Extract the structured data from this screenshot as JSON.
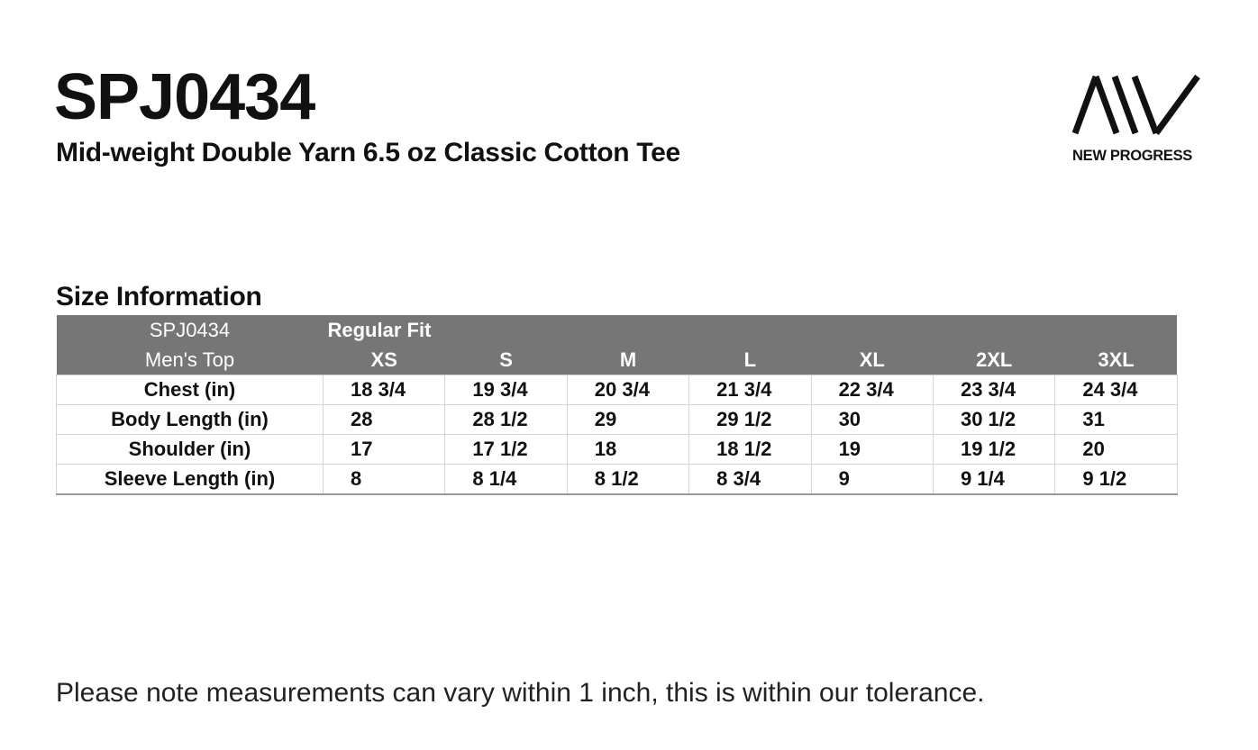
{
  "header": {
    "code": "SPJ0434",
    "subtitle": "Mid-weight Double Yarn 6.5 oz Classic Cotton Tee",
    "brand": "NEW PROGRESS",
    "logo_icon": "aw-stripes-logo"
  },
  "section_title": "Size Information",
  "table": {
    "header_code": "SPJ0434",
    "header_fit": "Regular Fit",
    "header_category": "Men's Top",
    "sizes": [
      "XS",
      "S",
      "M",
      "L",
      "XL",
      "2XL",
      "3XL"
    ],
    "rows": [
      {
        "label": "Chest (in)",
        "values": [
          "18 3/4",
          "19 3/4",
          "20 3/4",
          "21 3/4",
          "22 3/4",
          "23 3/4",
          "24 3/4"
        ]
      },
      {
        "label": "Body Length (in)",
        "values": [
          "28",
          "28 1/2",
          "29",
          "29 1/2",
          "30",
          "30 1/2",
          "31"
        ]
      },
      {
        "label": "Shoulder (in)",
        "values": [
          "17",
          "17 1/2",
          "18",
          "18 1/2",
          "19",
          "19 1/2",
          "20"
        ]
      },
      {
        "label": "Sleeve Length (in)",
        "values": [
          "8",
          "8 1/4",
          "8 1/2",
          "8 3/4",
          "9",
          "9 1/4",
          "9 1/2"
        ]
      }
    ],
    "header_color": "#767676"
  },
  "note": "Please note measurements can vary within 1 inch, this is within our tolerance."
}
